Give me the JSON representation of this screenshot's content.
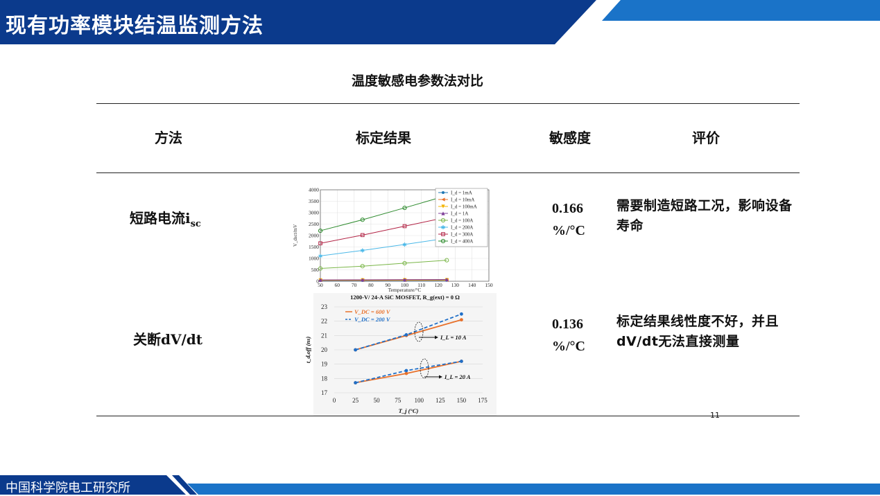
{
  "slide_title": "现有功率模块结温监测方法",
  "table_title": "温度敏感电参数法对比",
  "columns": [
    "方法",
    "标定结果",
    "敏感度",
    "评价"
  ],
  "rows": [
    {
      "method_main": "短路电流i",
      "method_sub": "sc",
      "sensitivity_value": "0.166",
      "sensitivity_unit": "%/°C",
      "evaluation": "需要制造短路工况，影响设备寿命"
    },
    {
      "method_main": "关断dV/dt",
      "method_sub": "",
      "sensitivity_value": "0.136",
      "sensitivity_unit": "%/°C",
      "evaluation": "标定结果线性度不好，并且dV/dt无法直接测量"
    }
  ],
  "page_number": "11",
  "footer_org": "中国科学院电工研究所",
  "colors": {
    "brand_blue": "#0b3a8c",
    "accent_blue": "#1a73c8"
  },
  "chart_data": [
    {
      "type": "line",
      "xlabel": "Temperature/°C",
      "ylabel": "V_dsct/mV",
      "xlim": [
        50,
        150
      ],
      "ylim": [
        0,
        4000
      ],
      "x_ticks": [
        50,
        60,
        70,
        80,
        90,
        100,
        110,
        120,
        130,
        140,
        150
      ],
      "y_ticks": [
        0,
        500,
        1000,
        1500,
        2000,
        2500,
        3000,
        3500,
        4000
      ],
      "legend_position": "top-right",
      "x": [
        50,
        75,
        100,
        125
      ],
      "series": [
        {
          "name": "I_d = 1mA",
          "values": [
            30,
            32,
            34,
            36
          ],
          "color": "#1f77b4",
          "marker": "dot"
        },
        {
          "name": "I_d = 10mA",
          "values": [
            40,
            43,
            46,
            49
          ],
          "color": "#e8702a",
          "marker": "tri-left"
        },
        {
          "name": "I_d = 100mA",
          "values": [
            50,
            54,
            58,
            62
          ],
          "color": "#f4b400",
          "marker": "tri-down"
        },
        {
          "name": "I_d = 1A",
          "values": [
            60,
            66,
            72,
            78
          ],
          "color": "#7e3f98",
          "marker": "tri-up"
        },
        {
          "name": "I_d = 100A",
          "values": [
            560,
            660,
            790,
            920
          ],
          "color": "#7ab648",
          "marker": "circle"
        },
        {
          "name": "I_d = 200A",
          "values": [
            1110,
            1350,
            1610,
            1880
          ],
          "color": "#4ab8e8",
          "marker": "star"
        },
        {
          "name": "I_d = 300A",
          "values": [
            1660,
            2020,
            2410,
            2800
          ],
          "color": "#b22244",
          "marker": "square"
        },
        {
          "name": "I_d = 400A",
          "values": [
            2210,
            2690,
            3210,
            3750
          ],
          "color": "#2e8b2e",
          "marker": "circle"
        }
      ]
    },
    {
      "type": "line",
      "title": "1200-V/ 24-A SiC MOSFET, R_g(ext) = 0 Ω",
      "xlabel": "T_j (°C)",
      "ylabel": "t_d,off (ns)",
      "xlim": [
        0,
        175
      ],
      "ylim": [
        17,
        23
      ],
      "x_ticks": [
        0,
        25,
        50,
        75,
        100,
        125,
        150,
        175
      ],
      "y_ticks": [
        17,
        18,
        19,
        20,
        21,
        22,
        23
      ],
      "legend_position": "top-left",
      "annotations": [
        "I_L = 10 A",
        "I_L = 20 A"
      ],
      "x": [
        25,
        85,
        150
      ],
      "series": [
        {
          "name": "V_DC = 600 V (I_L = 10 A)",
          "values": [
            20.0,
            21.0,
            22.1
          ],
          "color": "#e8702a",
          "dash": false
        },
        {
          "name": "V_DC = 200 V (I_L = 10 A)",
          "values": [
            20.0,
            21.05,
            22.5
          ],
          "color": "#1f6fc8",
          "dash": true
        },
        {
          "name": "V_DC = 600 V (I_L = 20 A)",
          "values": [
            17.7,
            18.35,
            19.2
          ],
          "color": "#e8702a",
          "dash": false
        },
        {
          "name": "V_DC = 200 V (I_L = 20 A)",
          "values": [
            17.7,
            18.55,
            19.2
          ],
          "color": "#1f6fc8",
          "dash": true
        }
      ],
      "legend_entries": [
        "V_DC = 600 V",
        "V_DC = 200 V"
      ]
    }
  ]
}
